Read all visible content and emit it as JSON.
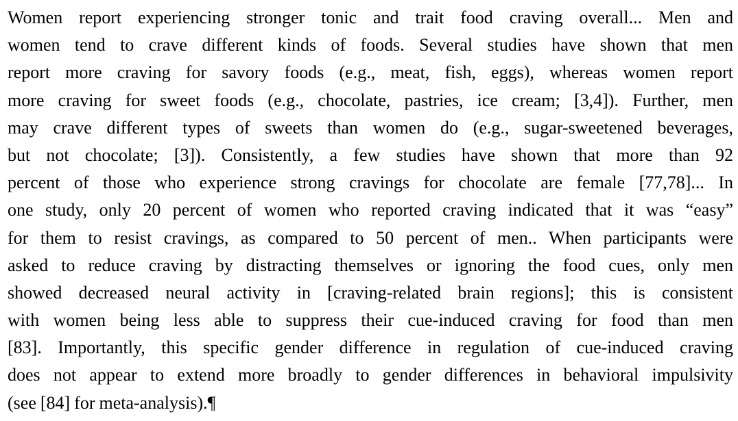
{
  "paragraph": {
    "lines": [
      "Women report experiencing stronger tonic and trait food craving overall... Men and",
      "women tend to crave different kinds of foods. Several studies have shown that men",
      "report more craving for savory foods (e.g., meat, fish, eggs), whereas women report",
      "more craving for sweet foods (e.g., chocolate, pastries, ice cream; [3,4]). Further, men",
      "may crave different types of sweets than women do (e.g., sugar-sweetened beverages,",
      "but not chocolate; [3]). Consistently, a few studies have shown that more than 92",
      "percent of those who experience strong cravings for chocolate are female [77,78]... In",
      "one study, only 20 percent of women who reported craving indicated that it was “easy”",
      "for them to resist cravings, as compared to 50 percent of men.. When participants were",
      "asked to reduce craving by distracting themselves or ignoring the food cues, only men",
      "showed decreased neural activity in [craving-related brain regions]; this is consistent",
      "with women being less able to suppress their cue-induced craving for food than men",
      "[83]. Importantly, this specific gender difference in regulation of cue-induced craving",
      "does not appear to extend more broadly to gender differences in behavioral impulsivity",
      "(see [84] for meta-analysis).¶"
    ]
  }
}
